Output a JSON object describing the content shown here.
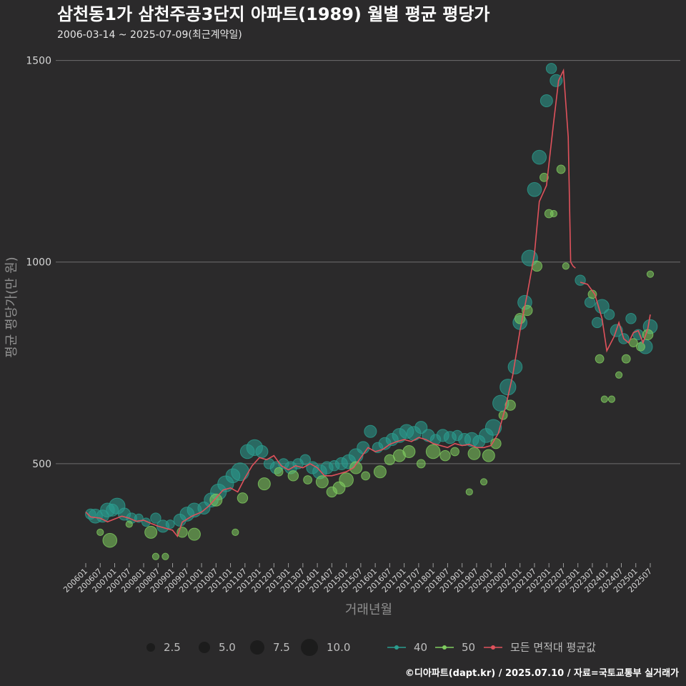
{
  "title": "삼천동1가 삼천주공3단지 아파트(1989) 월별 평균 평당가",
  "subtitle": "2006-03-14 ~ 2025-07-09(최근계약일)",
  "caption": "©디아파트(dapt.kr) / 2025.07.10 / 자료=국토교통부 실거래가",
  "colors": {
    "background": "#2b2a2b",
    "grid": "#6e6e6e",
    "series_40": "#2a9d8f",
    "series_50": "#7fcc5f",
    "series_avg": "#e0525c"
  },
  "chart_data": {
    "type": "scatter",
    "xlabel": "거래년월",
    "ylabel": "평균 평당가(만 원)",
    "ylim": [
      250,
      1540
    ],
    "yticks": [
      500,
      1000,
      1500
    ],
    "xticks": [
      "200601",
      "200607",
      "200701",
      "200707",
      "200801",
      "200807",
      "200901",
      "200907",
      "201001",
      "201007",
      "201101",
      "201107",
      "201201",
      "201207",
      "201301",
      "201307",
      "201401",
      "201407",
      "201501",
      "201507",
      "201601",
      "201607",
      "201701",
      "201707",
      "201801",
      "201807",
      "201901",
      "201907",
      "202001",
      "202007",
      "202101",
      "202107",
      "202201",
      "202207",
      "202301",
      "202307",
      "202401",
      "202407",
      "202501",
      "202507"
    ],
    "size_legend": {
      "title": "",
      "values": [
        "2.5",
        "5.0",
        "7.5",
        "10.0"
      ]
    },
    "color_legend": [
      {
        "key": "40",
        "label": "40"
      },
      {
        "key": "50",
        "label": "50"
      },
      {
        "key": "avg",
        "label": "모든 면적대 평균값"
      }
    ],
    "series": [
      {
        "name": "40",
        "points": [
          [
            "2006-03",
            375,
            4
          ],
          [
            "2006-05",
            370,
            6
          ],
          [
            "2006-08",
            370,
            5
          ],
          [
            "2006-10",
            385,
            6
          ],
          [
            "2006-12",
            385,
            5
          ],
          [
            "2007-02",
            395,
            7
          ],
          [
            "2007-05",
            375,
            5
          ],
          [
            "2007-08",
            365,
            4
          ],
          [
            "2007-11",
            365,
            3
          ],
          [
            "2008-02",
            355,
            3
          ],
          [
            "2008-06",
            365,
            4
          ],
          [
            "2008-09",
            345,
            5
          ],
          [
            "2008-12",
            350,
            3
          ],
          [
            "2009-04",
            360,
            5
          ],
          [
            "2009-07",
            375,
            6
          ],
          [
            "2009-10",
            385,
            6
          ],
          [
            "2010-02",
            390,
            5
          ],
          [
            "2010-05",
            410,
            6
          ],
          [
            "2010-08",
            430,
            7
          ],
          [
            "2010-11",
            450,
            7
          ],
          [
            "2011-02",
            470,
            6
          ],
          [
            "2011-05",
            480,
            8
          ],
          [
            "2011-08",
            530,
            6
          ],
          [
            "2011-11",
            540,
            7
          ],
          [
            "2012-02",
            530,
            5
          ],
          [
            "2012-05",
            500,
            4
          ],
          [
            "2012-08",
            490,
            5
          ],
          [
            "2012-11",
            500,
            4
          ],
          [
            "2013-02",
            490,
            5
          ],
          [
            "2013-05",
            500,
            4
          ],
          [
            "2013-08",
            510,
            4
          ],
          [
            "2013-11",
            490,
            5
          ],
          [
            "2014-02",
            480,
            6
          ],
          [
            "2014-05",
            490,
            5
          ],
          [
            "2014-08",
            495,
            4
          ],
          [
            "2014-11",
            500,
            5
          ],
          [
            "2015-02",
            505,
            6
          ],
          [
            "2015-05",
            520,
            6
          ],
          [
            "2015-08",
            540,
            5
          ],
          [
            "2015-11",
            580,
            5
          ],
          [
            "2016-02",
            540,
            4
          ],
          [
            "2016-05",
            550,
            5
          ],
          [
            "2016-08",
            560,
            5
          ],
          [
            "2016-11",
            570,
            6
          ],
          [
            "2017-02",
            580,
            6
          ],
          [
            "2017-05",
            575,
            6
          ],
          [
            "2017-08",
            590,
            5
          ],
          [
            "2017-11",
            570,
            5
          ],
          [
            "2018-02",
            560,
            4
          ],
          [
            "2018-05",
            570,
            5
          ],
          [
            "2018-08",
            565,
            5
          ],
          [
            "2018-11",
            570,
            4
          ],
          [
            "2019-02",
            560,
            5
          ],
          [
            "2019-05",
            560,
            6
          ],
          [
            "2019-08",
            555,
            5
          ],
          [
            "2019-11",
            570,
            6
          ],
          [
            "2020-02",
            590,
            7
          ],
          [
            "2020-05",
            650,
            7
          ],
          [
            "2020-08",
            690,
            7
          ],
          [
            "2020-11",
            740,
            6
          ],
          [
            "2021-01",
            850,
            6
          ],
          [
            "2021-03",
            900,
            6
          ],
          [
            "2021-05",
            1010,
            7
          ],
          [
            "2021-07",
            1180,
            6
          ],
          [
            "2021-09",
            1260,
            6
          ],
          [
            "2021-12",
            1400,
            5
          ],
          [
            "2022-02",
            1480,
            4
          ],
          [
            "2022-04",
            1450,
            5
          ],
          [
            "2023-02",
            955,
            4
          ],
          [
            "2023-06",
            900,
            4
          ],
          [
            "2023-09",
            850,
            4
          ],
          [
            "2023-11",
            890,
            6
          ],
          [
            "2024-02",
            870,
            4
          ],
          [
            "2024-05",
            830,
            5
          ],
          [
            "2024-08",
            810,
            4
          ],
          [
            "2024-11",
            860,
            4
          ],
          [
            "2025-02",
            820,
            4
          ],
          [
            "2025-05",
            790,
            6
          ],
          [
            "2025-07",
            840,
            6
          ]
        ]
      },
      {
        "name": "50",
        "points": [
          [
            "2006-07",
            330,
            2
          ],
          [
            "2006-11",
            310,
            6
          ],
          [
            "2007-07",
            350,
            2
          ],
          [
            "2008-04",
            330,
            5
          ],
          [
            "2008-06",
            270,
            2
          ],
          [
            "2008-10",
            270,
            2
          ],
          [
            "2009-05",
            330,
            4
          ],
          [
            "2009-10",
            325,
            5
          ],
          [
            "2010-07",
            410,
            5
          ],
          [
            "2011-03",
            330,
            2
          ],
          [
            "2011-06",
            415,
            4
          ],
          [
            "2012-03",
            450,
            5
          ],
          [
            "2012-09",
            480,
            3
          ],
          [
            "2013-03",
            470,
            4
          ],
          [
            "2013-09",
            460,
            3
          ],
          [
            "2014-03",
            455,
            5
          ],
          [
            "2014-07",
            430,
            4
          ],
          [
            "2014-10",
            440,
            5
          ],
          [
            "2015-01",
            460,
            6
          ],
          [
            "2015-05",
            490,
            5
          ],
          [
            "2015-09",
            470,
            3
          ],
          [
            "2016-03",
            480,
            5
          ],
          [
            "2016-07",
            510,
            4
          ],
          [
            "2016-11",
            520,
            5
          ],
          [
            "2017-03",
            530,
            5
          ],
          [
            "2017-08",
            500,
            3
          ],
          [
            "2018-01",
            530,
            6
          ],
          [
            "2018-06",
            520,
            4
          ],
          [
            "2018-10",
            530,
            3
          ],
          [
            "2019-04",
            430,
            2
          ],
          [
            "2019-06",
            525,
            5
          ],
          [
            "2019-10",
            455,
            2
          ],
          [
            "2019-12",
            520,
            5
          ],
          [
            "2020-03",
            550,
            4
          ],
          [
            "2020-06",
            620,
            3
          ],
          [
            "2020-09",
            645,
            4
          ],
          [
            "2021-01",
            860,
            4
          ],
          [
            "2021-04",
            880,
            4
          ],
          [
            "2021-08",
            990,
            4
          ],
          [
            "2021-11",
            1210,
            3
          ],
          [
            "2022-01",
            1120,
            3
          ],
          [
            "2022-03",
            1120,
            2
          ],
          [
            "2022-06",
            1230,
            3
          ],
          [
            "2022-08",
            990,
            2
          ],
          [
            "2023-07",
            920,
            3
          ],
          [
            "2023-10",
            760,
            3
          ],
          [
            "2023-12",
            660,
            2
          ],
          [
            "2024-03",
            660,
            2
          ],
          [
            "2024-06",
            720,
            2
          ],
          [
            "2024-09",
            760,
            3
          ],
          [
            "2024-12",
            800,
            3
          ],
          [
            "2025-03",
            790,
            3
          ],
          [
            "2025-06",
            820,
            4
          ],
          [
            "2025-07",
            970,
            2
          ]
        ]
      }
    ],
    "avg_line": [
      [
        "2006-01",
        380
      ],
      [
        "2006-03",
        368
      ],
      [
        "2006-07",
        365
      ],
      [
        "2006-10",
        356
      ],
      [
        "2007-01",
        363
      ],
      [
        "2007-04",
        370
      ],
      [
        "2007-07",
        365
      ],
      [
        "2007-10",
        357
      ],
      [
        "2008-01",
        360
      ],
      [
        "2008-04",
        352
      ],
      [
        "2008-07",
        345
      ],
      [
        "2008-10",
        340
      ],
      [
        "2009-01",
        335
      ],
      [
        "2009-03",
        320
      ],
      [
        "2009-05",
        355
      ],
      [
        "2009-09",
        370
      ],
      [
        "2010-01",
        380
      ],
      [
        "2010-04",
        395
      ],
      [
        "2010-07",
        415
      ],
      [
        "2010-10",
        435
      ],
      [
        "2011-01",
        440
      ],
      [
        "2011-04",
        430
      ],
      [
        "2011-07",
        465
      ],
      [
        "2011-10",
        495
      ],
      [
        "2012-01",
        515
      ],
      [
        "2012-04",
        510
      ],
      [
        "2012-07",
        520
      ],
      [
        "2012-10",
        495
      ],
      [
        "2013-01",
        485
      ],
      [
        "2013-04",
        495
      ],
      [
        "2013-07",
        490
      ],
      [
        "2013-10",
        500
      ],
      [
        "2014-01",
        490
      ],
      [
        "2014-04",
        470
      ],
      [
        "2014-07",
        470
      ],
      [
        "2014-10",
        475
      ],
      [
        "2015-01",
        480
      ],
      [
        "2015-04",
        490
      ],
      [
        "2015-07",
        515
      ],
      [
        "2015-10",
        540
      ],
      [
        "2016-01",
        530
      ],
      [
        "2016-04",
        535
      ],
      [
        "2016-07",
        548
      ],
      [
        "2016-10",
        555
      ],
      [
        "2017-01",
        560
      ],
      [
        "2017-04",
        555
      ],
      [
        "2017-07",
        565
      ],
      [
        "2017-10",
        560
      ],
      [
        "2018-01",
        550
      ],
      [
        "2018-04",
        545
      ],
      [
        "2018-07",
        540
      ],
      [
        "2018-10",
        550
      ],
      [
        "2019-01",
        545
      ],
      [
        "2019-04",
        548
      ],
      [
        "2019-07",
        540
      ],
      [
        "2019-10",
        540
      ],
      [
        "2020-01",
        545
      ],
      [
        "2020-04",
        575
      ],
      [
        "2020-07",
        640
      ],
      [
        "2020-10",
        720
      ],
      [
        "2021-01",
        830
      ],
      [
        "2021-04",
        920
      ],
      [
        "2021-07",
        1020
      ],
      [
        "2021-09",
        1150
      ],
      [
        "2021-12",
        1190
      ],
      [
        "2022-03",
        1350
      ],
      [
        "2022-05",
        1450
      ],
      [
        "2022-07",
        1475
      ],
      [
        "2022-09",
        1310
      ],
      [
        "2022-10",
        1000
      ],
      [
        "2022-11",
        990
      ],
      [
        "2022-12",
        985
      ],
      [
        "2023-01",
        null
      ],
      [
        "2023-02",
        950
      ],
      [
        "2023-05",
        945
      ],
      [
        "2023-08",
        920
      ],
      [
        "2023-11",
        860
      ],
      [
        "2024-01",
        780
      ],
      [
        "2024-04",
        815
      ],
      [
        "2024-06",
        850
      ],
      [
        "2024-08",
        810
      ],
      [
        "2024-10",
        800
      ],
      [
        "2024-12",
        825
      ],
      [
        "2025-02",
        830
      ],
      [
        "2025-04",
        800
      ],
      [
        "2025-06",
        835
      ],
      [
        "2025-07",
        870
      ]
    ]
  }
}
